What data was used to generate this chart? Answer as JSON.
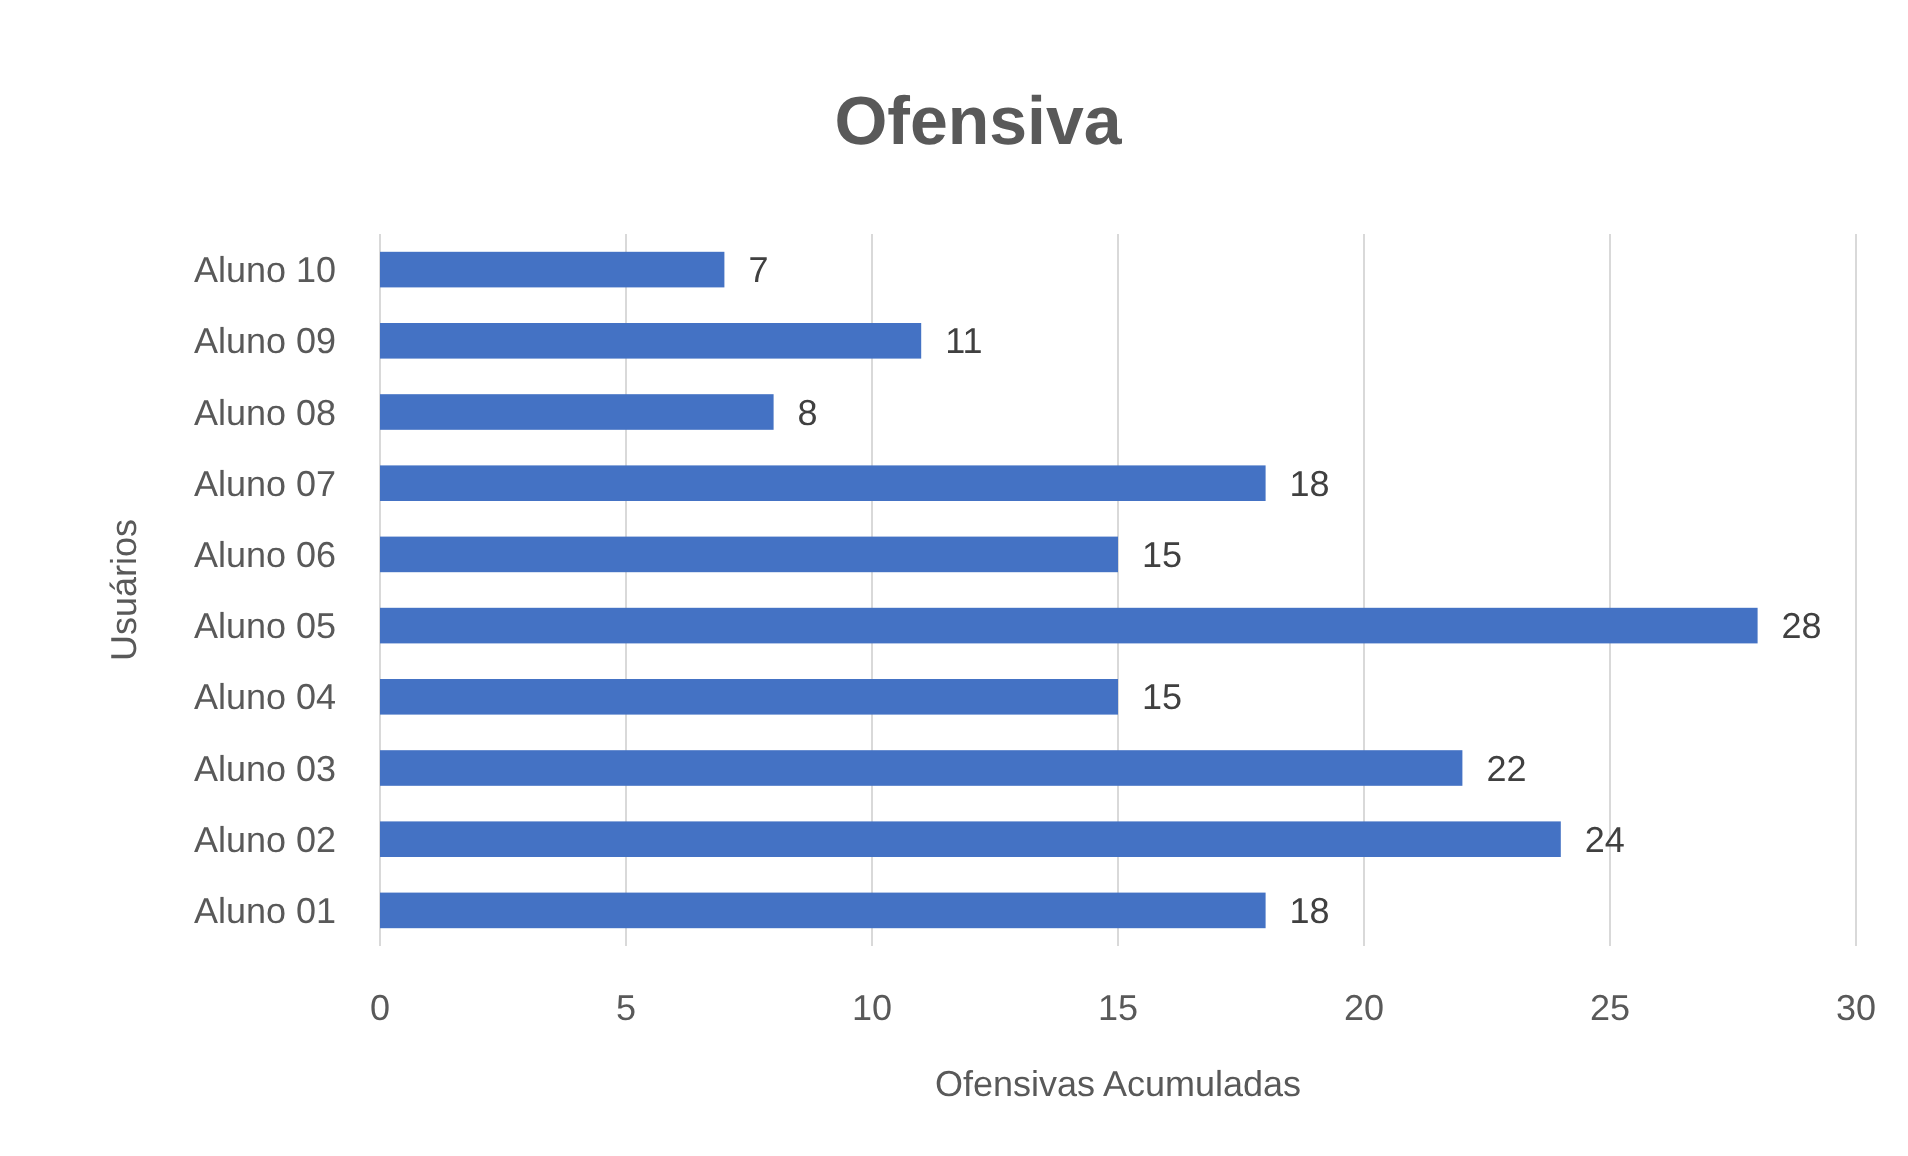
{
  "chart_data": {
    "type": "bar",
    "orientation": "horizontal",
    "title": "Ofensiva",
    "xlabel": "Ofensivas Acumuladas",
    "ylabel": "Usuários",
    "categories": [
      "Aluno 10",
      "Aluno 09",
      "Aluno 08",
      "Aluno 07",
      "Aluno 06",
      "Aluno 05",
      "Aluno 04",
      "Aluno 03",
      "Aluno 02",
      "Aluno 01"
    ],
    "values": [
      7,
      11,
      8,
      18,
      15,
      28,
      15,
      22,
      24,
      18
    ],
    "color": "#4472c4",
    "xlim": [
      0,
      30
    ],
    "xticks": [
      0,
      5,
      10,
      15,
      20,
      25,
      30
    ],
    "grid": "x",
    "data_labels": true
  }
}
